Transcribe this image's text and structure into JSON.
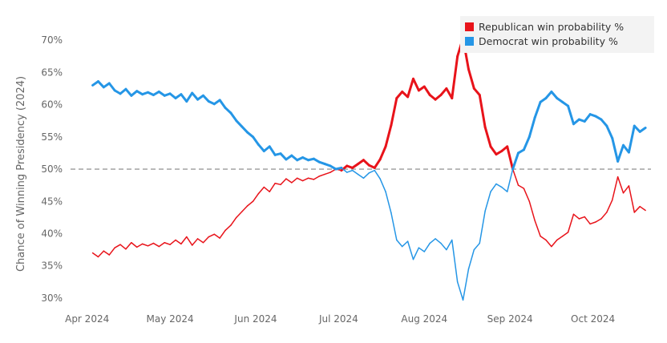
{
  "chart_data": {
    "type": "line",
    "ylabel": "Chance of Winning Presidency (2024)",
    "xlabel": "",
    "ylim": [
      29,
      72
    ],
    "y_ticks": [
      30,
      35,
      40,
      45,
      50,
      55,
      60,
      65,
      70
    ],
    "y_tick_format": "{v}%",
    "x_ticks": [
      {
        "date": "2024-04-01",
        "label": "Apr 2024"
      },
      {
        "date": "2024-05-01",
        "label": "May 2024"
      },
      {
        "date": "2024-06-01",
        "label": "Jun 2024"
      },
      {
        "date": "2024-07-01",
        "label": "Jul 2024"
      },
      {
        "date": "2024-08-01",
        "label": "Aug 2024"
      },
      {
        "date": "2024-09-01",
        "label": "Sep 2024"
      },
      {
        "date": "2024-10-01",
        "label": "Oct 2024"
      }
    ],
    "xlim": [
      "2024-03-26",
      "2024-10-22"
    ],
    "reference_line": {
      "y": 50,
      "style": "dashed",
      "color": "#aaaaaa"
    },
    "legend_position": "top-right",
    "grid": false,
    "series": [
      {
        "name": "Republican win probability %",
        "color": "#e8131a",
        "points": [
          [
            "2024-04-03",
            37.0
          ],
          [
            "2024-04-05",
            36.4
          ],
          [
            "2024-04-07",
            37.3
          ],
          [
            "2024-04-09",
            36.7
          ],
          [
            "2024-04-11",
            37.8
          ],
          [
            "2024-04-13",
            38.3
          ],
          [
            "2024-04-15",
            37.6
          ],
          [
            "2024-04-17",
            38.6
          ],
          [
            "2024-04-19",
            37.9
          ],
          [
            "2024-04-21",
            38.4
          ],
          [
            "2024-04-23",
            38.1
          ],
          [
            "2024-04-25",
            38.5
          ],
          [
            "2024-04-27",
            38.0
          ],
          [
            "2024-04-29",
            38.6
          ],
          [
            "2024-05-01",
            38.3
          ],
          [
            "2024-05-03",
            39.0
          ],
          [
            "2024-05-05",
            38.4
          ],
          [
            "2024-05-07",
            39.5
          ],
          [
            "2024-05-09",
            38.2
          ],
          [
            "2024-05-11",
            39.2
          ],
          [
            "2024-05-13",
            38.6
          ],
          [
            "2024-05-15",
            39.5
          ],
          [
            "2024-05-17",
            39.9
          ],
          [
            "2024-05-19",
            39.3
          ],
          [
            "2024-05-21",
            40.5
          ],
          [
            "2024-05-23",
            41.3
          ],
          [
            "2024-05-25",
            42.5
          ],
          [
            "2024-05-27",
            43.4
          ],
          [
            "2024-05-29",
            44.3
          ],
          [
            "2024-05-31",
            45.0
          ],
          [
            "2024-06-02",
            46.2
          ],
          [
            "2024-06-04",
            47.2
          ],
          [
            "2024-06-06",
            46.5
          ],
          [
            "2024-06-08",
            47.8
          ],
          [
            "2024-06-10",
            47.6
          ],
          [
            "2024-06-12",
            48.5
          ],
          [
            "2024-06-14",
            47.9
          ],
          [
            "2024-06-16",
            48.6
          ],
          [
            "2024-06-18",
            48.2
          ],
          [
            "2024-06-20",
            48.6
          ],
          [
            "2024-06-22",
            48.4
          ],
          [
            "2024-06-24",
            48.9
          ],
          [
            "2024-06-26",
            49.2
          ],
          [
            "2024-06-28",
            49.5
          ],
          [
            "2024-06-30",
            50.0
          ],
          [
            "2024-07-02",
            49.8
          ],
          [
            "2024-07-04",
            50.5
          ],
          [
            "2024-07-06",
            50.2
          ],
          [
            "2024-07-08",
            50.8
          ],
          [
            "2024-07-10",
            51.4
          ],
          [
            "2024-07-12",
            50.6
          ],
          [
            "2024-07-14",
            50.2
          ],
          [
            "2024-07-16",
            51.5
          ],
          [
            "2024-07-18",
            53.5
          ],
          [
            "2024-07-20",
            56.8
          ],
          [
            "2024-07-22",
            61.0
          ],
          [
            "2024-07-24",
            62.0
          ],
          [
            "2024-07-26",
            61.2
          ],
          [
            "2024-07-28",
            64.0
          ],
          [
            "2024-07-30",
            62.2
          ],
          [
            "2024-08-01",
            62.8
          ],
          [
            "2024-08-03",
            61.5
          ],
          [
            "2024-08-05",
            60.8
          ],
          [
            "2024-08-07",
            61.5
          ],
          [
            "2024-08-09",
            62.5
          ],
          [
            "2024-08-11",
            61.0
          ],
          [
            "2024-08-13",
            67.5
          ],
          [
            "2024-08-15",
            70.3
          ],
          [
            "2024-08-17",
            65.5
          ],
          [
            "2024-08-19",
            62.5
          ],
          [
            "2024-08-21",
            61.5
          ],
          [
            "2024-08-23",
            56.5
          ],
          [
            "2024-08-25",
            53.5
          ],
          [
            "2024-08-27",
            52.3
          ],
          [
            "2024-08-29",
            52.8
          ],
          [
            "2024-08-31",
            53.5
          ],
          [
            "2024-09-02",
            50.0
          ],
          [
            "2024-09-04",
            47.5
          ],
          [
            "2024-09-06",
            47.0
          ],
          [
            "2024-09-08",
            45.0
          ],
          [
            "2024-09-10",
            42.0
          ],
          [
            "2024-09-12",
            39.6
          ],
          [
            "2024-09-14",
            39.0
          ],
          [
            "2024-09-16",
            38.0
          ],
          [
            "2024-09-18",
            39.0
          ],
          [
            "2024-09-20",
            39.6
          ],
          [
            "2024-09-22",
            40.2
          ],
          [
            "2024-09-24",
            43.0
          ],
          [
            "2024-09-26",
            42.3
          ],
          [
            "2024-09-28",
            42.6
          ],
          [
            "2024-09-30",
            41.5
          ],
          [
            "2024-10-02",
            41.8
          ],
          [
            "2024-10-04",
            42.3
          ],
          [
            "2024-10-06",
            43.3
          ],
          [
            "2024-10-08",
            45.2
          ],
          [
            "2024-10-10",
            48.8
          ],
          [
            "2024-10-12",
            46.3
          ],
          [
            "2024-10-14",
            47.4
          ],
          [
            "2024-10-16",
            43.3
          ],
          [
            "2024-10-18",
            44.2
          ],
          [
            "2024-10-20",
            43.6
          ]
        ]
      },
      {
        "name": "Democrat win probability %",
        "color": "#2596e6",
        "points": [
          [
            "2024-04-03",
            63.0
          ],
          [
            "2024-04-05",
            63.6
          ],
          [
            "2024-04-07",
            62.7
          ],
          [
            "2024-04-09",
            63.3
          ],
          [
            "2024-04-11",
            62.2
          ],
          [
            "2024-04-13",
            61.7
          ],
          [
            "2024-04-15",
            62.4
          ],
          [
            "2024-04-17",
            61.4
          ],
          [
            "2024-04-19",
            62.1
          ],
          [
            "2024-04-21",
            61.6
          ],
          [
            "2024-04-23",
            61.9
          ],
          [
            "2024-04-25",
            61.5
          ],
          [
            "2024-04-27",
            62.0
          ],
          [
            "2024-04-29",
            61.4
          ],
          [
            "2024-05-01",
            61.7
          ],
          [
            "2024-05-03",
            61.0
          ],
          [
            "2024-05-05",
            61.6
          ],
          [
            "2024-05-07",
            60.5
          ],
          [
            "2024-05-09",
            61.8
          ],
          [
            "2024-05-11",
            60.8
          ],
          [
            "2024-05-13",
            61.4
          ],
          [
            "2024-05-15",
            60.5
          ],
          [
            "2024-05-17",
            60.1
          ],
          [
            "2024-05-19",
            60.7
          ],
          [
            "2024-05-21",
            59.5
          ],
          [
            "2024-05-23",
            58.7
          ],
          [
            "2024-05-25",
            57.5
          ],
          [
            "2024-05-27",
            56.6
          ],
          [
            "2024-05-29",
            55.7
          ],
          [
            "2024-05-31",
            55.0
          ],
          [
            "2024-06-02",
            53.8
          ],
          [
            "2024-06-04",
            52.8
          ],
          [
            "2024-06-06",
            53.5
          ],
          [
            "2024-06-08",
            52.2
          ],
          [
            "2024-06-10",
            52.4
          ],
          [
            "2024-06-12",
            51.5
          ],
          [
            "2024-06-14",
            52.1
          ],
          [
            "2024-06-16",
            51.4
          ],
          [
            "2024-06-18",
            51.8
          ],
          [
            "2024-06-20",
            51.4
          ],
          [
            "2024-06-22",
            51.6
          ],
          [
            "2024-06-24",
            51.1
          ],
          [
            "2024-06-26",
            50.8
          ],
          [
            "2024-06-28",
            50.5
          ],
          [
            "2024-06-30",
            50.0
          ],
          [
            "2024-07-02",
            50.2
          ],
          [
            "2024-07-04",
            49.5
          ],
          [
            "2024-07-06",
            49.8
          ],
          [
            "2024-07-08",
            49.2
          ],
          [
            "2024-07-10",
            48.6
          ],
          [
            "2024-07-12",
            49.4
          ],
          [
            "2024-07-14",
            49.8
          ],
          [
            "2024-07-16",
            48.5
          ],
          [
            "2024-07-18",
            46.5
          ],
          [
            "2024-07-20",
            43.2
          ],
          [
            "2024-07-22",
            39.0
          ],
          [
            "2024-07-24",
            38.0
          ],
          [
            "2024-07-26",
            38.8
          ],
          [
            "2024-07-28",
            36.0
          ],
          [
            "2024-07-30",
            37.8
          ],
          [
            "2024-08-01",
            37.2
          ],
          [
            "2024-08-03",
            38.5
          ],
          [
            "2024-08-05",
            39.2
          ],
          [
            "2024-08-07",
            38.5
          ],
          [
            "2024-08-09",
            37.5
          ],
          [
            "2024-08-11",
            39.0
          ],
          [
            "2024-08-13",
            32.5
          ],
          [
            "2024-08-15",
            29.7
          ],
          [
            "2024-08-17",
            34.5
          ],
          [
            "2024-08-19",
            37.5
          ],
          [
            "2024-08-21",
            38.5
          ],
          [
            "2024-08-23",
            43.5
          ],
          [
            "2024-08-25",
            46.5
          ],
          [
            "2024-08-27",
            47.7
          ],
          [
            "2024-08-29",
            47.2
          ],
          [
            "2024-08-31",
            46.5
          ],
          [
            "2024-09-02",
            50.0
          ],
          [
            "2024-09-04",
            52.5
          ],
          [
            "2024-09-06",
            53.0
          ],
          [
            "2024-09-08",
            55.0
          ],
          [
            "2024-09-10",
            58.0
          ],
          [
            "2024-09-12",
            60.4
          ],
          [
            "2024-09-14",
            61.0
          ],
          [
            "2024-09-16",
            62.0
          ],
          [
            "2024-09-18",
            61.0
          ],
          [
            "2024-09-20",
            60.4
          ],
          [
            "2024-09-22",
            59.8
          ],
          [
            "2024-09-24",
            57.0
          ],
          [
            "2024-09-26",
            57.7
          ],
          [
            "2024-09-28",
            57.4
          ],
          [
            "2024-09-30",
            58.5
          ],
          [
            "2024-10-02",
            58.2
          ],
          [
            "2024-10-04",
            57.7
          ],
          [
            "2024-10-06",
            56.7
          ],
          [
            "2024-10-08",
            54.8
          ],
          [
            "2024-10-10",
            51.2
          ],
          [
            "2024-10-12",
            53.7
          ],
          [
            "2024-10-14",
            52.6
          ],
          [
            "2024-10-16",
            56.7
          ],
          [
            "2024-10-18",
            55.8
          ],
          [
            "2024-10-20",
            56.4
          ]
        ]
      }
    ]
  }
}
